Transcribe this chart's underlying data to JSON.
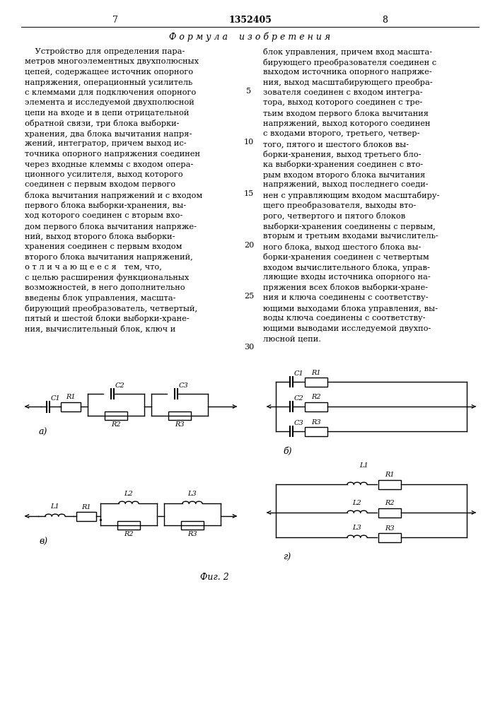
{
  "page_number_left": "7",
  "patent_number": "1352405",
  "page_number_right": "8",
  "formula_title": "Ф о р м у л а    и з о б р е т е н и я",
  "left_col_lines": [
    "    Устройство для определения пара-",
    "метров многоэлементных двухполюсных",
    "цепей, содержащее источник опорного",
    "напряжения, операционный усилитель",
    "с клеммами для подключения опорного",
    "элемента и исследуемой двухполюсной",
    "цепи на входе и в цепи отрицательной",
    "обратной связи, три блока выборки-",
    "хранения, два блока вычитания напря-",
    "жений, интегратор, причем выход ис-",
    "точника опорного напряжения соединен",
    "через входные клеммы с входом опера-",
    "ционного усилителя, выход которого",
    "соединен с первым входом первого",
    "блока вычитания напряжений и с входом",
    "первого блока выборки-хранения, вы-",
    "ход которого соединен с вторым вхо-",
    "дом первого блока вычитания напряже-",
    "ний, выход второго блока выборки-",
    "хранения соединен с первым входом",
    "второго блока вычитания напряжений,",
    "о т л и ч а ю щ е е с я   тем, что,",
    "с целью расширения функциональных",
    "возможностей, в него дополнительно",
    "введены блок управления, масшта-",
    "бирующий преобразователь, четвертый,",
    "пятый и шестой блоки выборки-хране-",
    "ния, вычислительный блок, ключ и"
  ],
  "right_col_lines": [
    "блок управления, причем вход масшта-",
    "бирующего преобразователя соединен с",
    "выходом источника опорного напряже-",
    "ния, выход масштабирующего преобра-",
    "зователя соединен с входом интегра-",
    "тора, выход которого соединен с тре-",
    "тьим входом первого блока вычитания",
    "напряжений, выход которого соединен",
    "с входами второго, третьего, четвер-",
    "того, пятого и шестого блоков вы-",
    "борки-хранения, выход третьего бло-",
    "ка выборки-хранения соединен с вто-",
    "рым входом второго блока вычитания",
    "напряжений, выход последнего соеди-",
    "нен с управляющим входом масштабиру-",
    "щего преобразователя, выходы вто-",
    "рого, четвертого и пятого блоков",
    "выборки-хранения соединены с первым,",
    "вторым и третьим входами вычислитель-",
    "ного блока, выход шестого блока вы-",
    "борки-хранения соединен с четвертым",
    "входом вычислительного блока, управ-",
    "ляющие входы источника опорного на-",
    "пряжения всех блоков выборки-хране-",
    "ния и ключа соединены с соответству-",
    "ющими выходами блока управления, вы-",
    "воды ключа соединены с соответству-",
    "ющими выводами исследуемой двухпо-",
    "люсной цепи."
  ],
  "line_numbers": [
    5,
    10,
    15,
    20,
    25,
    30
  ],
  "fig_caption": "Фиг. 2",
  "bg_color": "#ffffff",
  "text_color": "#000000",
  "line_color": "#000000"
}
